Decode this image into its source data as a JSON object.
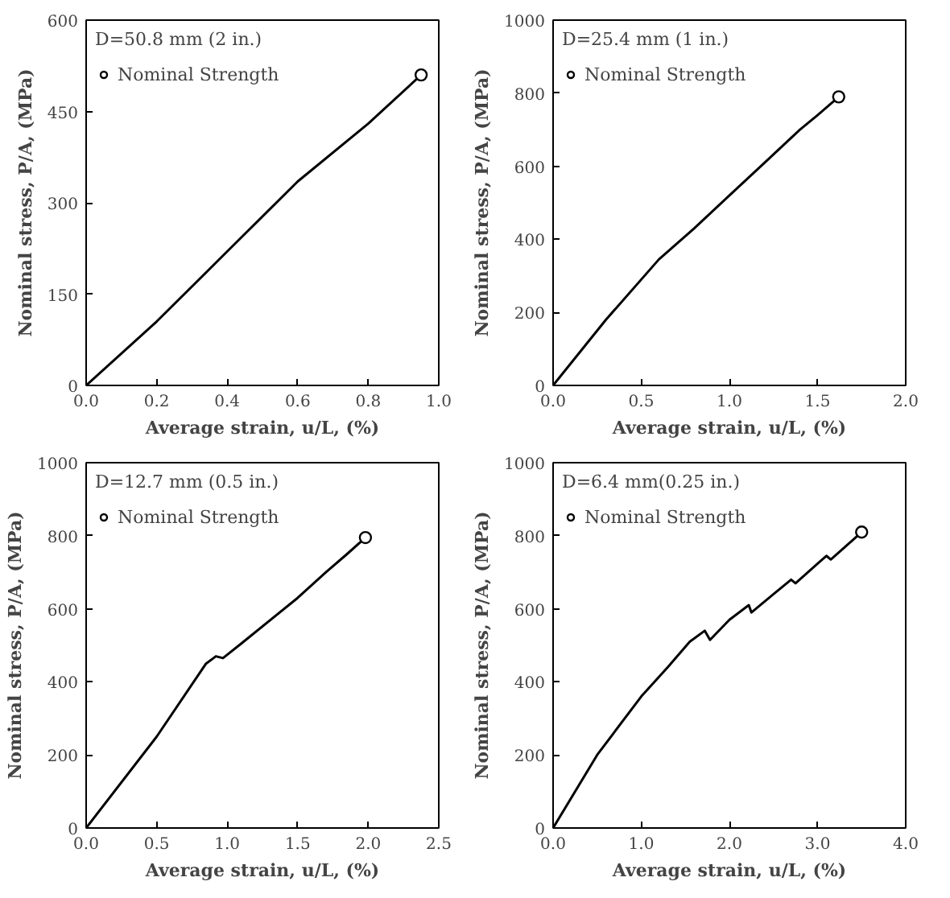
{
  "chart_data": [
    {
      "type": "line",
      "xlabel": "Average strain, u/L, (%)",
      "ylabel": "Nominal stress, P/A, (MPa)",
      "legend_title": "D=50.8 mm (2 in.)",
      "legend": "top left",
      "grid": false,
      "xlim": [
        0,
        1
      ],
      "ylim": [
        0,
        600
      ],
      "xticks": [
        {
          "value": 0,
          "label": "0.0"
        },
        0.2,
        0.4,
        0.6,
        0.8,
        {
          "value": 1,
          "label": "1.0"
        }
      ],
      "yticks": [
        0,
        150,
        300,
        450,
        600
      ],
      "series": [
        {
          "color": "#000000",
          "marker": "none",
          "x": [
            0,
            0.2,
            0.4,
            0.6,
            0.8,
            0.95
          ],
          "values": [
            0,
            105,
            220,
            335,
            430,
            510
          ]
        },
        {
          "type": "scatter",
          "name": "Nominal Strength",
          "color": "#000000",
          "marker": "circle",
          "x": [
            0.95
          ],
          "values": [
            510
          ]
        }
      ]
    },
    {
      "type": "line",
      "xlabel": "Average strain, u/L, (%)",
      "ylabel": "Nominal stress, P/A, (MPa)",
      "legend_title": "D=25.4 mm (1 in.)",
      "legend": "top left",
      "grid": false,
      "xlim": [
        0,
        2
      ],
      "ylim": [
        0,
        1000
      ],
      "xticks": [
        {
          "value": 0,
          "label": "0.0"
        },
        0.5,
        {
          "value": 1,
          "label": "1.0"
        },
        1.5,
        {
          "value": 2,
          "label": "2.0"
        }
      ],
      "yticks": [
        0,
        200,
        400,
        600,
        800,
        1000
      ],
      "series": [
        {
          "color": "#000000",
          "marker": "none",
          "x": [
            0,
            0.3,
            0.6,
            0.8,
            1.0,
            1.2,
            1.4,
            1.5,
            1.62
          ],
          "values": [
            0,
            180,
            345,
            430,
            520,
            610,
            700,
            740,
            790
          ]
        },
        {
          "type": "scatter",
          "name": "Nominal Strength",
          "color": "#000000",
          "marker": "circle",
          "x": [
            1.62
          ],
          "values": [
            790
          ]
        }
      ]
    },
    {
      "type": "line",
      "xlabel": "Average strain, u/L, (%)",
      "ylabel": "Nominal stress, P/A, (MPa)",
      "legend_title": "D=12.7 mm (0.5 in.)",
      "legend": "top left",
      "grid": false,
      "xlim": [
        0,
        2.5
      ],
      "ylim": [
        0,
        1000
      ],
      "xticks": [
        {
          "value": 0,
          "label": "0.0"
        },
        0.5,
        {
          "value": 1,
          "label": "1.0"
        },
        1.5,
        {
          "value": 2,
          "label": "2.0"
        },
        2.5
      ],
      "yticks": [
        0,
        200,
        400,
        600,
        800,
        1000
      ],
      "series": [
        {
          "color": "#000000",
          "marker": "none",
          "x": [
            0,
            0.5,
            0.85,
            0.92,
            0.97,
            1.1,
            1.5,
            1.7,
            1.85,
            1.98
          ],
          "values": [
            0,
            250,
            450,
            470,
            465,
            505,
            630,
            700,
            750,
            795
          ]
        },
        {
          "type": "scatter",
          "name": "Nominal Strength",
          "color": "#000000",
          "marker": "circle",
          "x": [
            1.98
          ],
          "values": [
            795
          ]
        }
      ]
    },
    {
      "type": "line",
      "xlabel": "Average strain, u/L, (%)",
      "ylabel": "Nominal stress, P/A, (MPa)",
      "legend_title": "D=6.4 mm(0.25 in.)",
      "legend": "top left",
      "grid": false,
      "xlim": [
        0,
        4
      ],
      "ylim": [
        0,
        1000
      ],
      "xticks": [
        {
          "value": 0,
          "label": "0.0"
        },
        {
          "value": 1,
          "label": "1.0"
        },
        {
          "value": 2,
          "label": "2.0"
        },
        {
          "value": 3,
          "label": "3.0"
        },
        {
          "value": 4,
          "label": "4.0"
        }
      ],
      "yticks": [
        0,
        200,
        400,
        600,
        800,
        1000
      ],
      "series": [
        {
          "color": "#000000",
          "marker": "none",
          "x": [
            0,
            0.5,
            1.0,
            1.3,
            1.55,
            1.72,
            1.78,
            2.0,
            2.22,
            2.25,
            2.5,
            2.7,
            2.75,
            3.1,
            3.15,
            3.5
          ],
          "values": [
            0,
            200,
            360,
            440,
            510,
            540,
            515,
            570,
            610,
            590,
            640,
            680,
            670,
            745,
            735,
            810
          ]
        },
        {
          "type": "scatter",
          "name": "Nominal Strength",
          "color": "#000000",
          "marker": "circle",
          "x": [
            3.5
          ],
          "values": [
            810
          ]
        }
      ]
    }
  ]
}
